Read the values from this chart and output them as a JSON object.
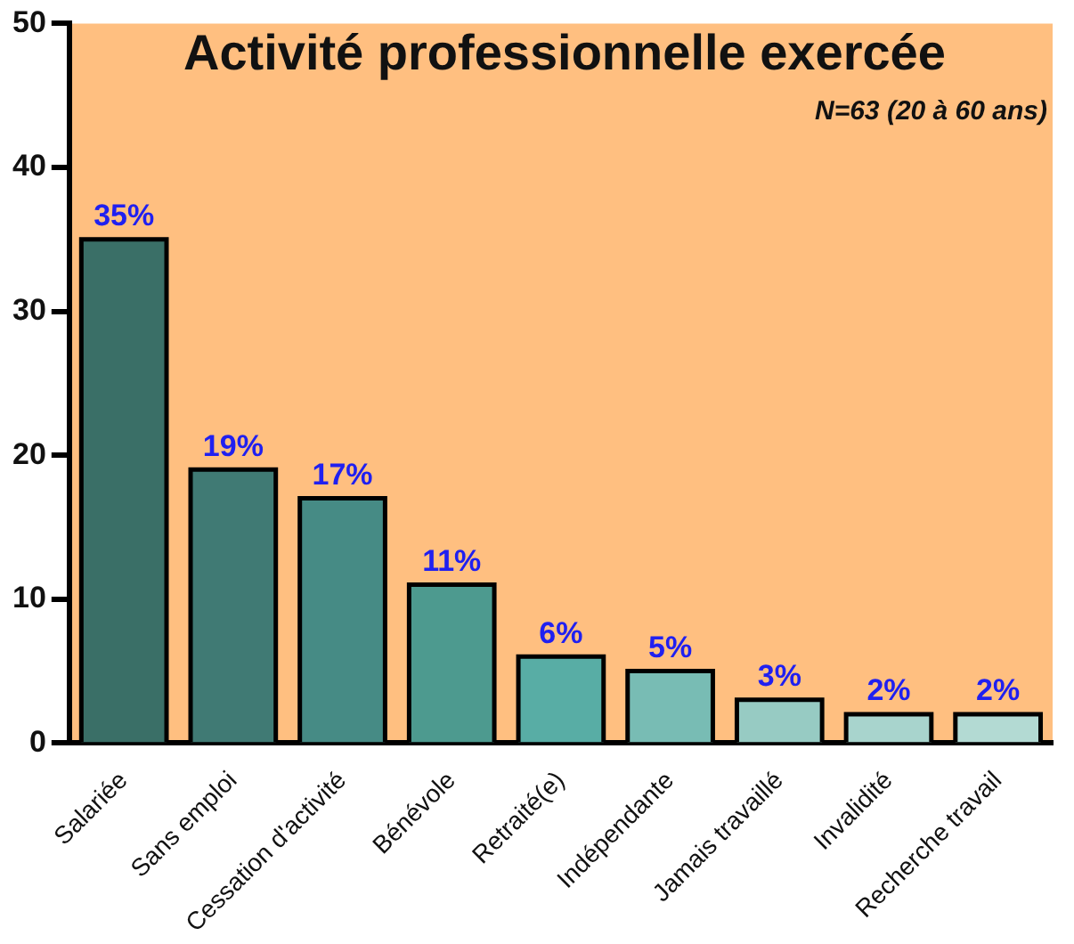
{
  "chart_data": {
    "type": "bar",
    "title": "Activité professionnelle exercée",
    "subtitle": "N=63 (20 à 60 ans)",
    "categories": [
      "Salariée",
      "Sans emploi",
      "Cessation d'activité",
      "Bénévole",
      "Retraité(e)",
      "Indépendante",
      "Jamais travaillé",
      "Invalidité",
      "Recherche travail"
    ],
    "values": [
      35,
      19,
      17,
      11,
      6,
      5,
      3,
      2,
      2
    ],
    "colors": [
      "#3a6f67",
      "#407a74",
      "#468b85",
      "#4d9a8f",
      "#58ada5",
      "#78bcb4",
      "#97cbc3",
      "#a8d4cd",
      "#b3dad3"
    ],
    "value_labels": [
      "35%",
      "19%",
      "17%",
      "11%",
      "6%",
      "5%",
      "3%",
      "2%",
      "2%"
    ],
    "ylim": [
      0,
      50
    ],
    "yticks": [
      0,
      10,
      20,
      30,
      40,
      50
    ],
    "grid": false,
    "legend": false
  }
}
